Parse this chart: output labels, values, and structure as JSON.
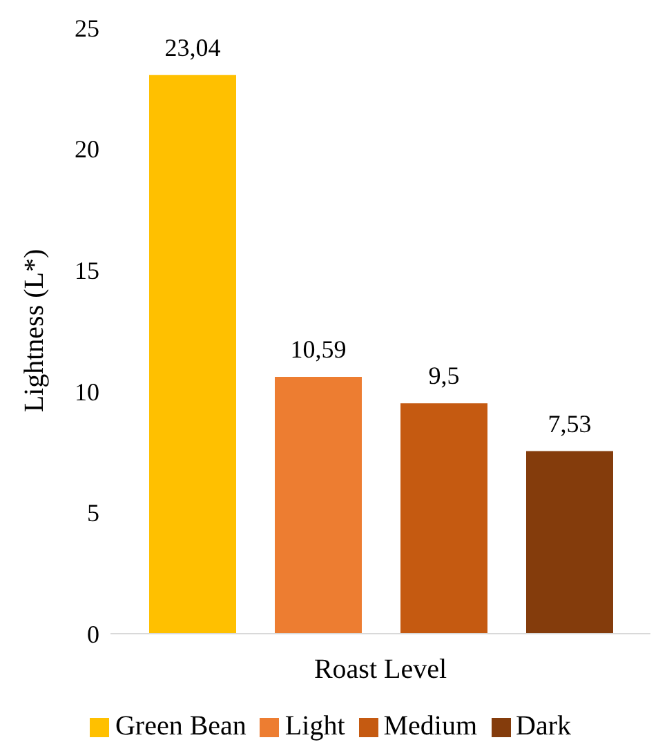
{
  "chart_data": {
    "type": "bar",
    "ylabel": "Lightness (L*)",
    "xlabel": "Roast Level",
    "categories": [
      null
    ],
    "series": [
      {
        "name": "Green Bean",
        "color": "#ffc000",
        "values": [
          23.04
        ],
        "value_labels": [
          "23,04"
        ]
      },
      {
        "name": "Light",
        "color": "#ed7d31",
        "values": [
          10.59
        ],
        "value_labels": [
          "10,59"
        ]
      },
      {
        "name": "Medium",
        "color": "#c55a11",
        "values": [
          9.5
        ],
        "value_labels": [
          "9,5"
        ]
      },
      {
        "name": "Dark",
        "color": "#843c0c",
        "values": [
          7.53
        ],
        "value_labels": [
          "7,53"
        ]
      }
    ],
    "ylim": [
      0,
      25
    ],
    "yticks": [
      0,
      5,
      10,
      15,
      20,
      25
    ],
    "grid": false,
    "legend": "bottom"
  }
}
